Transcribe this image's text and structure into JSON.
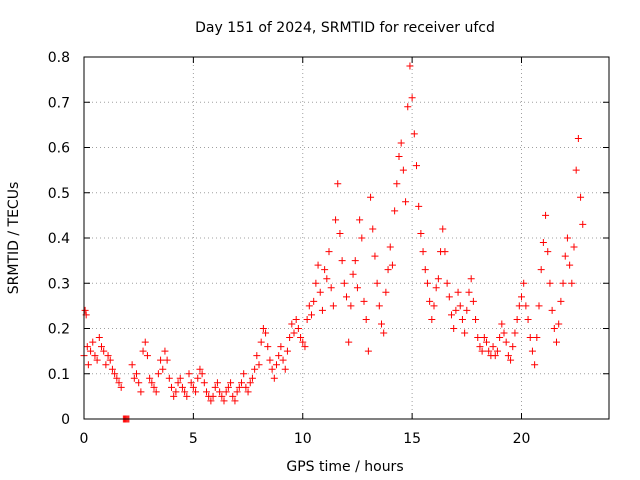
{
  "chart_data": {
    "type": "scatter",
    "title": "Day 151 of 2024, SRMTID for receiver ufcd",
    "xlabel": "GPS time / hours",
    "ylabel": "SRMTID / TECUs",
    "xlim": [
      0,
      24
    ],
    "ylim": [
      0,
      0.8
    ],
    "xticks": [
      0,
      5,
      10,
      15,
      20
    ],
    "yticks": [
      0,
      0.1,
      0.2,
      0.3,
      0.4,
      0.5,
      0.6,
      0.7,
      0.8
    ],
    "xtick_labels": [
      "0",
      "5",
      "10",
      "15",
      "20"
    ],
    "ytick_labels": [
      "0",
      "0.1",
      "0.2",
      "0.3",
      "0.4",
      "0.5",
      "0.6",
      "0.7",
      "0.8"
    ],
    "grid": true,
    "marker": "+",
    "colors": {
      "series": "#ff0000",
      "grid": "#a0a0a0",
      "axis": "#000000"
    },
    "series": [
      {
        "name": "SRMTID",
        "points": [
          [
            0.0,
            0.14
          ],
          [
            0.05,
            0.24
          ],
          [
            0.1,
            0.23
          ],
          [
            0.15,
            0.16
          ],
          [
            0.2,
            0.12
          ],
          [
            0.3,
            0.15
          ],
          [
            0.4,
            0.17
          ],
          [
            0.5,
            0.14
          ],
          [
            0.6,
            0.13
          ],
          [
            0.7,
            0.18
          ],
          [
            0.8,
            0.16
          ],
          [
            0.9,
            0.15
          ],
          [
            1.0,
            0.12
          ],
          [
            1.1,
            0.14
          ],
          [
            1.2,
            0.13
          ],
          [
            1.3,
            0.11
          ],
          [
            1.4,
            0.1
          ],
          [
            1.5,
            0.09
          ],
          [
            1.6,
            0.08
          ],
          [
            1.7,
            0.07
          ],
          [
            1.8,
            0.0
          ],
          [
            1.85,
            0.0
          ],
          [
            1.9,
            0.0
          ],
          [
            1.95,
            0.0
          ],
          [
            2.0,
            0.0
          ],
          [
            2.05,
            0.0
          ],
          [
            2.2,
            0.12
          ],
          [
            2.3,
            0.09
          ],
          [
            2.4,
            0.1
          ],
          [
            2.5,
            0.08
          ],
          [
            2.6,
            0.06
          ],
          [
            2.7,
            0.15
          ],
          [
            2.8,
            0.17
          ],
          [
            2.9,
            0.14
          ],
          [
            3.0,
            0.09
          ],
          [
            3.1,
            0.08
          ],
          [
            3.2,
            0.07
          ],
          [
            3.3,
            0.06
          ],
          [
            3.4,
            0.1
          ],
          [
            3.5,
            0.13
          ],
          [
            3.6,
            0.11
          ],
          [
            3.7,
            0.15
          ],
          [
            3.8,
            0.13
          ],
          [
            3.9,
            0.09
          ],
          [
            4.0,
            0.07
          ],
          [
            4.1,
            0.05
          ],
          [
            4.2,
            0.06
          ],
          [
            4.3,
            0.08
          ],
          [
            4.4,
            0.09
          ],
          [
            4.5,
            0.07
          ],
          [
            4.6,
            0.06
          ],
          [
            4.7,
            0.05
          ],
          [
            4.8,
            0.1
          ],
          [
            4.9,
            0.08
          ],
          [
            5.0,
            0.07
          ],
          [
            5.1,
            0.06
          ],
          [
            5.2,
            0.09
          ],
          [
            5.3,
            0.11
          ],
          [
            5.4,
            0.1
          ],
          [
            5.5,
            0.08
          ],
          [
            5.6,
            0.06
          ],
          [
            5.7,
            0.05
          ],
          [
            5.8,
            0.04
          ],
          [
            5.9,
            0.05
          ],
          [
            6.0,
            0.07
          ],
          [
            6.1,
            0.08
          ],
          [
            6.2,
            0.06
          ],
          [
            6.3,
            0.05
          ],
          [
            6.4,
            0.04
          ],
          [
            6.5,
            0.06
          ],
          [
            6.6,
            0.07
          ],
          [
            6.7,
            0.08
          ],
          [
            6.8,
            0.05
          ],
          [
            6.9,
            0.04
          ],
          [
            7.0,
            0.06
          ],
          [
            7.1,
            0.07
          ],
          [
            7.2,
            0.08
          ],
          [
            7.3,
            0.1
          ],
          [
            7.4,
            0.07
          ],
          [
            7.5,
            0.06
          ],
          [
            7.6,
            0.08
          ],
          [
            7.7,
            0.09
          ],
          [
            7.8,
            0.11
          ],
          [
            7.9,
            0.14
          ],
          [
            8.0,
            0.12
          ],
          [
            8.1,
            0.17
          ],
          [
            8.2,
            0.2
          ],
          [
            8.3,
            0.19
          ],
          [
            8.4,
            0.16
          ],
          [
            8.5,
            0.13
          ],
          [
            8.6,
            0.11
          ],
          [
            8.7,
            0.09
          ],
          [
            8.8,
            0.12
          ],
          [
            8.9,
            0.14
          ],
          [
            9.0,
            0.16
          ],
          [
            9.1,
            0.13
          ],
          [
            9.2,
            0.11
          ],
          [
            9.3,
            0.15
          ],
          [
            9.4,
            0.18
          ],
          [
            9.5,
            0.21
          ],
          [
            9.6,
            0.19
          ],
          [
            9.7,
            0.22
          ],
          [
            9.8,
            0.2
          ],
          [
            9.9,
            0.18
          ],
          [
            10.0,
            0.17
          ],
          [
            10.1,
            0.16
          ],
          [
            10.2,
            0.22
          ],
          [
            10.3,
            0.25
          ],
          [
            10.4,
            0.23
          ],
          [
            10.5,
            0.26
          ],
          [
            10.6,
            0.3
          ],
          [
            10.7,
            0.34
          ],
          [
            10.8,
            0.28
          ],
          [
            10.9,
            0.24
          ],
          [
            11.0,
            0.33
          ],
          [
            11.1,
            0.31
          ],
          [
            11.2,
            0.37
          ],
          [
            11.3,
            0.29
          ],
          [
            11.4,
            0.25
          ],
          [
            11.5,
            0.44
          ],
          [
            11.6,
            0.52
          ],
          [
            11.7,
            0.41
          ],
          [
            11.8,
            0.35
          ],
          [
            11.9,
            0.3
          ],
          [
            12.0,
            0.27
          ],
          [
            12.1,
            0.17
          ],
          [
            12.2,
            0.25
          ],
          [
            12.3,
            0.32
          ],
          [
            12.4,
            0.35
          ],
          [
            12.5,
            0.29
          ],
          [
            12.6,
            0.44
          ],
          [
            12.7,
            0.4
          ],
          [
            12.8,
            0.26
          ],
          [
            12.9,
            0.22
          ],
          [
            13.0,
            0.15
          ],
          [
            13.1,
            0.49
          ],
          [
            13.2,
            0.42
          ],
          [
            13.3,
            0.36
          ],
          [
            13.4,
            0.3
          ],
          [
            13.5,
            0.25
          ],
          [
            13.6,
            0.21
          ],
          [
            13.7,
            0.19
          ],
          [
            13.8,
            0.28
          ],
          [
            13.9,
            0.33
          ],
          [
            14.0,
            0.38
          ],
          [
            14.1,
            0.34
          ],
          [
            14.2,
            0.46
          ],
          [
            14.3,
            0.52
          ],
          [
            14.4,
            0.58
          ],
          [
            14.5,
            0.61
          ],
          [
            14.6,
            0.55
          ],
          [
            14.7,
            0.48
          ],
          [
            14.8,
            0.69
          ],
          [
            14.9,
            0.78
          ],
          [
            15.0,
            0.71
          ],
          [
            15.1,
            0.63
          ],
          [
            15.2,
            0.56
          ],
          [
            15.3,
            0.47
          ],
          [
            15.4,
            0.41
          ],
          [
            15.5,
            0.37
          ],
          [
            15.6,
            0.33
          ],
          [
            15.7,
            0.3
          ],
          [
            15.8,
            0.26
          ],
          [
            15.9,
            0.22
          ],
          [
            16.0,
            0.25
          ],
          [
            16.1,
            0.29
          ],
          [
            16.2,
            0.31
          ],
          [
            16.3,
            0.37
          ],
          [
            16.4,
            0.42
          ],
          [
            16.5,
            0.37
          ],
          [
            16.6,
            0.3
          ],
          [
            16.7,
            0.27
          ],
          [
            16.8,
            0.23
          ],
          [
            16.9,
            0.2
          ],
          [
            17.0,
            0.24
          ],
          [
            17.1,
            0.28
          ],
          [
            17.2,
            0.25
          ],
          [
            17.3,
            0.22
          ],
          [
            17.4,
            0.19
          ],
          [
            17.5,
            0.24
          ],
          [
            17.6,
            0.28
          ],
          [
            17.7,
            0.31
          ],
          [
            17.8,
            0.26
          ],
          [
            17.9,
            0.22
          ],
          [
            18.0,
            0.18
          ],
          [
            18.1,
            0.16
          ],
          [
            18.2,
            0.15
          ],
          [
            18.3,
            0.18
          ],
          [
            18.4,
            0.17
          ],
          [
            18.5,
            0.15
          ],
          [
            18.6,
            0.14
          ],
          [
            18.7,
            0.16
          ],
          [
            18.8,
            0.14
          ],
          [
            18.9,
            0.15
          ],
          [
            19.0,
            0.18
          ],
          [
            19.1,
            0.21
          ],
          [
            19.2,
            0.19
          ],
          [
            19.3,
            0.17
          ],
          [
            19.4,
            0.14
          ],
          [
            19.5,
            0.13
          ],
          [
            19.6,
            0.16
          ],
          [
            19.7,
            0.19
          ],
          [
            19.8,
            0.22
          ],
          [
            19.9,
            0.25
          ],
          [
            20.0,
            0.27
          ],
          [
            20.1,
            0.3
          ],
          [
            20.2,
            0.25
          ],
          [
            20.3,
            0.22
          ],
          [
            20.4,
            0.18
          ],
          [
            20.5,
            0.15
          ],
          [
            20.6,
            0.12
          ],
          [
            20.7,
            0.18
          ],
          [
            20.8,
            0.25
          ],
          [
            20.9,
            0.33
          ],
          [
            21.0,
            0.39
          ],
          [
            21.1,
            0.45
          ],
          [
            21.2,
            0.37
          ],
          [
            21.3,
            0.3
          ],
          [
            21.4,
            0.24
          ],
          [
            21.5,
            0.2
          ],
          [
            21.6,
            0.17
          ],
          [
            21.7,
            0.21
          ],
          [
            21.8,
            0.26
          ],
          [
            21.9,
            0.3
          ],
          [
            22.0,
            0.36
          ],
          [
            22.1,
            0.4
          ],
          [
            22.2,
            0.34
          ],
          [
            22.3,
            0.3
          ],
          [
            22.4,
            0.38
          ],
          [
            22.5,
            0.55
          ],
          [
            22.6,
            0.62
          ],
          [
            22.7,
            0.49
          ],
          [
            22.8,
            0.43
          ]
        ]
      }
    ]
  }
}
